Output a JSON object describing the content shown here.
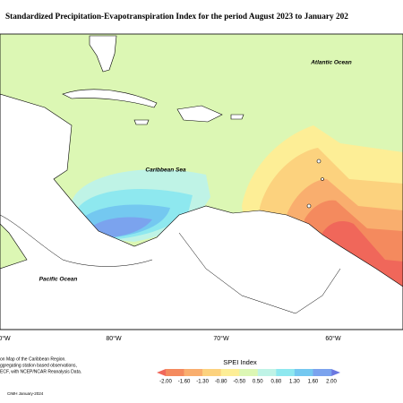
{
  "header": {
    "title": "Standardized Precipitation-Evapotranspiration Index for the period August 2023 to January 202"
  },
  "map": {
    "labels": [
      "Atlantic Ocean",
      "Caribbean Sea",
      "Pacific Ocean"
    ],
    "longitudes": [
      "0°W",
      "80°W",
      "70°W",
      "60°W"
    ]
  },
  "legend": {
    "title": "SPEI Index",
    "labels": [
      "-2.00",
      "-1.60",
      "-1.30",
      "-0.80",
      "-0.50",
      "0.50",
      "0.80",
      "1.30",
      "1.60",
      "2.00"
    ],
    "colors": [
      "#f0675a",
      "#f48a5e",
      "#f9ae6e",
      "#fcd27e",
      "#fdee96",
      "#dcf7b4",
      "#bff3e6",
      "#8ee8ef",
      "#74c8f0",
      "#7ba3ee",
      "#6b77e0"
    ]
  },
  "footer": {
    "notes": [
      "on Map of the Caribbean Region.",
      "ggregating station based observations,",
      "ECF, with NCEP/NCAR Reanalysis Data."
    ],
    "credit": "CIMH January-2024"
  }
}
